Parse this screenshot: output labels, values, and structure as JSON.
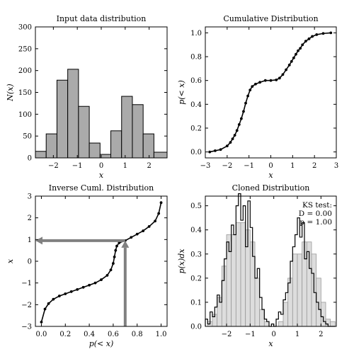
{
  "chart_data": [
    {
      "type": "bar",
      "title": "Input data distribution",
      "xlabel": "x",
      "ylabel": "N(x)",
      "xlim": [
        -2.75,
        2.75
      ],
      "ylim": [
        0,
        300
      ],
      "xticks": [
        -2,
        -1,
        0,
        1,
        2
      ],
      "xtick_labels": [
        "−2",
        "−1",
        "0",
        "1",
        "2"
      ],
      "yticks": [
        0,
        50,
        100,
        150,
        200,
        250,
        300
      ],
      "ytick_labels": [
        "0",
        "50",
        "100",
        "150",
        "200",
        "250",
        "300"
      ],
      "bin_edges": [
        -2.75,
        -2.3,
        -1.85,
        -1.4,
        -0.95,
        -0.5,
        -0.05,
        0.4,
        0.85,
        1.3,
        1.75,
        2.2,
        2.75
      ],
      "values": [
        15,
        55,
        178,
        203,
        118,
        34,
        8,
        62,
        141,
        122,
        55,
        13
      ],
      "bar_color": "#aaaaaa",
      "edge_color": "#000000"
    },
    {
      "type": "line",
      "title": "Cumulative Distribution",
      "xlabel": "x",
      "ylabel": "p(< x)",
      "xlim": [
        -3,
        3
      ],
      "ylim": [
        -0.05,
        1.05
      ],
      "xticks": [
        -3,
        -2,
        -1,
        0,
        1,
        2,
        3
      ],
      "xtick_labels": [
        "−3",
        "−2",
        "−1",
        "0",
        "1",
        "2",
        "3"
      ],
      "yticks": [
        0,
        0.2,
        0.4,
        0.6,
        0.8,
        1.0
      ],
      "ytick_labels": [
        "0.0",
        "0.2",
        "0.4",
        "0.6",
        "0.8",
        "1.0"
      ],
      "series": [
        {
          "x": [
            -2.8,
            -2.55,
            -2.3,
            -2.0,
            -1.85,
            -1.75,
            -1.65,
            -1.55,
            -1.45,
            -1.35,
            -1.25,
            -1.15,
            -1.05,
            -0.95,
            -0.85,
            -0.7,
            -0.5,
            -0.25,
            0.0,
            0.25,
            0.4,
            0.55,
            0.7,
            0.85,
            0.95,
            1.05,
            1.15,
            1.25,
            1.35,
            1.45,
            1.6,
            1.75,
            1.9,
            2.1,
            2.4,
            2.75
          ],
          "y": [
            0.0,
            0.01,
            0.02,
            0.05,
            0.08,
            0.11,
            0.14,
            0.18,
            0.23,
            0.28,
            0.34,
            0.41,
            0.47,
            0.52,
            0.55,
            0.57,
            0.585,
            0.6,
            0.6,
            0.605,
            0.62,
            0.65,
            0.69,
            0.73,
            0.76,
            0.79,
            0.82,
            0.85,
            0.87,
            0.9,
            0.93,
            0.95,
            0.97,
            0.985,
            0.995,
            1.0
          ],
          "marker": "dot"
        }
      ]
    },
    {
      "type": "line",
      "title": "Inverse Cuml. Distribution",
      "xlabel": "p(< x)",
      "ylabel": "x",
      "xlim": [
        -0.05,
        1.05
      ],
      "ylim": [
        -3,
        3
      ],
      "xticks": [
        0,
        0.2,
        0.4,
        0.6,
        0.8,
        1.0
      ],
      "xtick_labels": [
        "0.0",
        "0.2",
        "0.4",
        "0.6",
        "0.8",
        "1.0"
      ],
      "yticks": [
        -3,
        -2,
        -1,
        0,
        1,
        2,
        3
      ],
      "ytick_labels": [
        "−3",
        "−2",
        "−1",
        "0",
        "1",
        "2",
        "3"
      ],
      "series": [
        {
          "x": [
            0.0,
            0.03,
            0.06,
            0.1,
            0.15,
            0.2,
            0.25,
            0.3,
            0.35,
            0.4,
            0.45,
            0.5,
            0.55,
            0.58,
            0.6,
            0.61,
            0.62,
            0.63,
            0.65,
            0.7,
            0.75,
            0.8,
            0.85,
            0.9,
            0.95,
            0.98,
            1.0
          ],
          "y": [
            -2.8,
            -2.2,
            -1.95,
            -1.75,
            -1.6,
            -1.5,
            -1.4,
            -1.3,
            -1.2,
            -1.1,
            -1.0,
            -0.85,
            -0.65,
            -0.4,
            -0.1,
            0.2,
            0.5,
            0.7,
            0.85,
            0.95,
            1.1,
            1.25,
            1.4,
            1.6,
            1.85,
            2.2,
            2.7
          ],
          "marker": "dot"
        }
      ],
      "annotation_arrows": [
        {
          "from": [
            0.7,
            -3
          ],
          "to": [
            0.7,
            0.95
          ]
        },
        {
          "from": [
            0.7,
            0.95
          ],
          "to": [
            -0.05,
            0.95
          ]
        }
      ],
      "arrow_color": "#808080"
    },
    {
      "type": "bar",
      "title": "Cloned Distribution",
      "xlabel": "x",
      "ylabel": "p(x)dx",
      "xlim": [
        -2.9,
        2.65
      ],
      "ylim": [
        0,
        0.54
      ],
      "xticks": [
        -2,
        -1,
        0,
        1,
        2
      ],
      "xtick_labels": [
        "−2",
        "−1",
        "0",
        "1",
        "2"
      ],
      "yticks": [
        0,
        0.1,
        0.2,
        0.3,
        0.4,
        0.5
      ],
      "ytick_labels": [
        "0.0",
        "0.1",
        "0.2",
        "0.3",
        "0.4",
        "0.5"
      ],
      "true_bin_edges": [
        -2.8,
        -2.6,
        -2.4,
        -2.2,
        -2.0,
        -1.8,
        -1.6,
        -1.4,
        -1.2,
        -1.0,
        -0.8,
        -0.6,
        -0.4,
        -0.2,
        0.0,
        0.2,
        0.4,
        0.6,
        0.8,
        1.0,
        1.2,
        1.4,
        1.6,
        1.8,
        2.0,
        2.2,
        2.4,
        2.6
      ],
      "true_values": [
        0.02,
        0.05,
        0.12,
        0.25,
        0.38,
        0.38,
        0.43,
        0.43,
        0.4,
        0.35,
        0.2,
        0.07,
        0.02,
        0.0,
        0.0,
        0.02,
        0.1,
        0.2,
        0.3,
        0.3,
        0.35,
        0.35,
        0.3,
        0.2,
        0.1,
        0.03,
        0.02
      ],
      "clone_step_x": [
        -2.85,
        -2.75,
        -2.65,
        -2.55,
        -2.45,
        -2.35,
        -2.25,
        -2.15,
        -2.05,
        -1.95,
        -1.85,
        -1.75,
        -1.65,
        -1.55,
        -1.45,
        -1.35,
        -1.25,
        -1.15,
        -1.05,
        -0.95,
        -0.85,
        -0.75,
        -0.65,
        -0.55,
        -0.45,
        -0.35,
        -0.25,
        -0.15,
        -0.05,
        0.05,
        0.15,
        0.25,
        0.35,
        0.45,
        0.55,
        0.65,
        0.75,
        0.85,
        0.95,
        1.05,
        1.15,
        1.25,
        1.35,
        1.45,
        1.55,
        1.65,
        1.75,
        1.85,
        1.95,
        2.05,
        2.15,
        2.25,
        2.35,
        2.45,
        2.55
      ],
      "clone_step_y": [
        0.03,
        0.01,
        0.06,
        0.04,
        0.08,
        0.13,
        0.1,
        0.19,
        0.28,
        0.35,
        0.31,
        0.42,
        0.38,
        0.5,
        0.55,
        0.44,
        0.5,
        0.33,
        0.52,
        0.41,
        0.29,
        0.2,
        0.24,
        0.12,
        0.07,
        0.03,
        0.02,
        0.0,
        0.01,
        0.0,
        0.03,
        0.06,
        0.05,
        0.11,
        0.14,
        0.18,
        0.27,
        0.33,
        0.38,
        0.45,
        0.37,
        0.43,
        0.28,
        0.31,
        0.24,
        0.22,
        0.14,
        0.1,
        0.07,
        0.04,
        0.02,
        0.01,
        0.0,
        0.0,
        0.0
      ],
      "fill_color": "#dddddd",
      "ks_test": {
        "label": "KS test:",
        "d_text": "D = 0.00",
        "p_text": "p = 1.00"
      }
    }
  ]
}
